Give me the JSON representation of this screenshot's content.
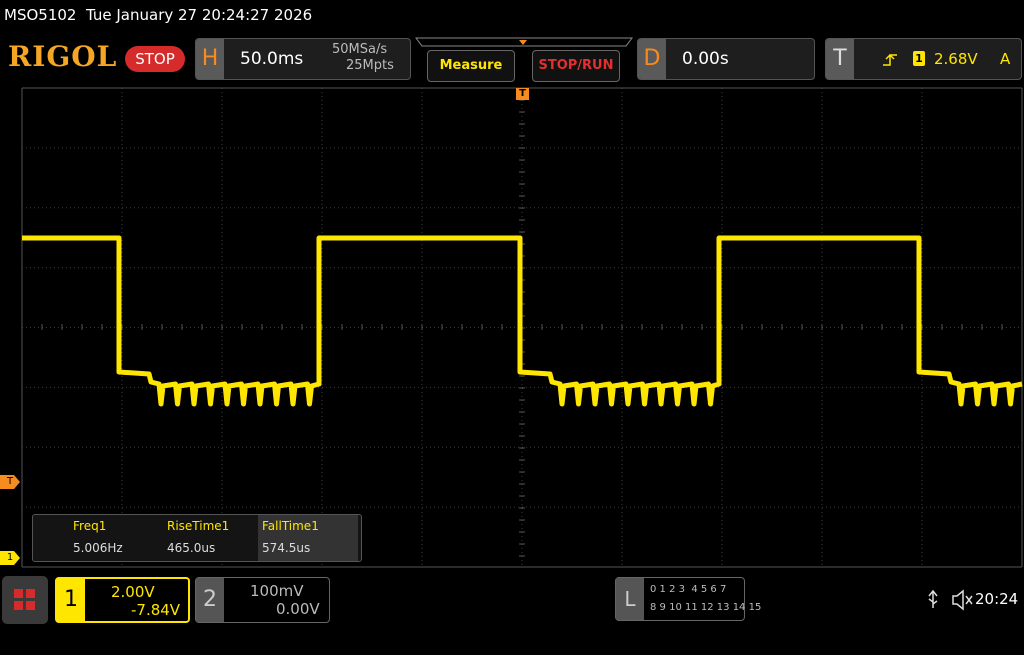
{
  "status_line": "MSO5102  Tue January 27 20:24:27 2026",
  "toolbar": {
    "logo": "RIGOL",
    "run_state": "STOP"
  },
  "horizontal": {
    "label": "H",
    "timebase": "50.0ms",
    "sample_rate": "50MSa/s",
    "memory_depth": "25Mpts"
  },
  "buttons": {
    "measure": "Measure",
    "stop_run": "STOP/RUN"
  },
  "delay": {
    "label": "D",
    "value": "0.00s"
  },
  "trigger": {
    "label": "T",
    "source": "1",
    "level": "2.68V",
    "mode": "A"
  },
  "markers": {
    "trigger_position": "T",
    "trigger_level": "T",
    "channel1": "1"
  },
  "measurements": [
    {
      "label": "Freq1",
      "value": "5.006Hz"
    },
    {
      "label": "RiseTime1",
      "value": "465.0us"
    },
    {
      "label": "FallTime1",
      "value": "574.5us"
    }
  ],
  "channels": [
    {
      "number": "1",
      "scale": "2.00V",
      "offset": "-7.84V"
    },
    {
      "number": "2",
      "scale": "100mV",
      "offset": "0.00V"
    }
  ],
  "logic": {
    "label": "L",
    "row1": "0 1 2 3  4 5 6 7",
    "row2": "8 9 10 11 12 13 14 15"
  },
  "clock": "20:24"
}
